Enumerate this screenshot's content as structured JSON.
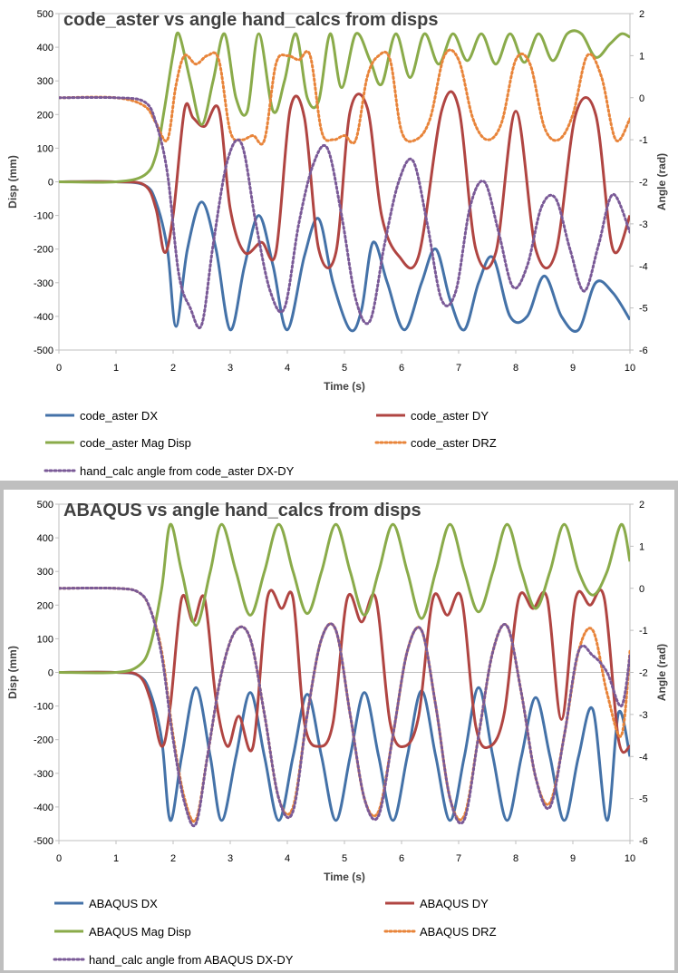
{
  "chart_data": [
    {
      "type": "line",
      "title": "code_aster vs angle hand_calcs from disps",
      "xlabel": "Time (s)",
      "ylabel": "Disp (mm)",
      "y2label": "Angle (rad)",
      "xlim": [
        0,
        10
      ],
      "ylim": [
        -500,
        500
      ],
      "y2lim": [
        -6,
        2
      ],
      "x_ticks": [
        "0",
        "1",
        "2",
        "3",
        "4",
        "5",
        "6",
        "7",
        "8",
        "9",
        "10"
      ],
      "y_ticks": [
        "500",
        "400",
        "300",
        "200",
        "100",
        "0",
        "-100",
        "-200",
        "-300",
        "-400",
        "-500"
      ],
      "y2_ticks": [
        "2",
        "1",
        "0",
        "-1",
        "-2",
        "-3",
        "-4",
        "-5",
        "-6"
      ],
      "legend_position": "bottom",
      "series": [
        {
          "name": "code_aster DX",
          "axis": "left",
          "color": "#4472a8",
          "style": "solid",
          "x": [
            0,
            1,
            1.5,
            1.7,
            1.9,
            2.05,
            2.25,
            2.5,
            2.75,
            3.0,
            3.25,
            3.5,
            3.75,
            4.0,
            4.3,
            4.55,
            4.8,
            5.1,
            5.3,
            5.5,
            5.75,
            6.05,
            6.35,
            6.6,
            6.85,
            7.1,
            7.35,
            7.6,
            7.9,
            8.2,
            8.5,
            8.8,
            9.1,
            9.4,
            9.7,
            10
          ],
          "y": [
            0,
            0,
            -10,
            -60,
            -200,
            -430,
            -200,
            -60,
            -200,
            -440,
            -250,
            -100,
            -250,
            -440,
            -220,
            -110,
            -300,
            -440,
            -380,
            -180,
            -300,
            -440,
            -300,
            -200,
            -350,
            -440,
            -300,
            -225,
            -400,
            -400,
            -280,
            -400,
            -440,
            -300,
            -330,
            -410
          ]
        },
        {
          "name": "code_aster DY",
          "axis": "left",
          "color": "#b04542",
          "style": "solid",
          "x": [
            0,
            1,
            1.5,
            1.7,
            1.85,
            2.0,
            2.2,
            2.35,
            2.55,
            2.8,
            3.0,
            3.25,
            3.55,
            3.8,
            4.05,
            4.3,
            4.55,
            4.85,
            5.1,
            5.4,
            5.65,
            5.95,
            6.3,
            6.7,
            7.0,
            7.3,
            7.65,
            8.0,
            8.35,
            8.7,
            9.05,
            9.4,
            9.7,
            10
          ],
          "y": [
            0,
            0,
            -10,
            -80,
            -210,
            -100,
            215,
            190,
            165,
            215,
            -80,
            -210,
            -180,
            -210,
            215,
            190,
            -200,
            -210,
            210,
            220,
            -100,
            -220,
            -220,
            210,
            220,
            -200,
            -210,
            210,
            -200,
            -210,
            200,
            200,
            -200,
            -100
          ]
        },
        {
          "name": "code_aster Mag Disp",
          "axis": "left",
          "color": "#8aab4a",
          "style": "solid",
          "x": [
            0,
            1,
            1.5,
            1.7,
            1.85,
            2.0,
            2.1,
            2.3,
            2.5,
            2.7,
            2.9,
            3.1,
            3.3,
            3.5,
            3.75,
            3.95,
            4.15,
            4.35,
            4.55,
            4.75,
            4.95,
            5.2,
            5.45,
            5.65,
            5.9,
            6.15,
            6.4,
            6.65,
            6.9,
            7.15,
            7.4,
            7.65,
            7.9,
            8.15,
            8.4,
            8.65,
            8.9,
            9.15,
            9.4,
            9.65,
            9.85,
            10
          ],
          "y": [
            0,
            0,
            20,
            80,
            220,
            380,
            440,
            300,
            170,
            300,
            440,
            250,
            210,
            440,
            210,
            300,
            440,
            250,
            240,
            440,
            280,
            440,
            360,
            290,
            440,
            310,
            440,
            350,
            440,
            360,
            440,
            350,
            440,
            355,
            440,
            360,
            440,
            440,
            370,
            410,
            440,
            430
          ]
        },
        {
          "name": "code_aster DRZ",
          "axis": "right",
          "color": "#e8843a",
          "style": "dotted",
          "x": [
            0,
            1,
            1.5,
            1.7,
            1.9,
            2.05,
            2.2,
            2.4,
            2.6,
            2.8,
            3.0,
            3.2,
            3.4,
            3.6,
            3.8,
            4.0,
            4.2,
            4.4,
            4.6,
            4.8,
            5.0,
            5.2,
            5.4,
            5.6,
            5.8,
            6.0,
            6.25,
            6.5,
            6.75,
            7.0,
            7.25,
            7.5,
            7.75,
            8.0,
            8.25,
            8.5,
            8.75,
            9.0,
            9.25,
            9.5,
            9.75,
            10
          ],
          "y": [
            0,
            0,
            -0.2,
            -0.6,
            -1.0,
            0.3,
            1.0,
            0.8,
            1.0,
            0.9,
            -0.8,
            -1.0,
            -0.9,
            -1.0,
            0.8,
            1.0,
            0.9,
            1.0,
            -0.8,
            -1.0,
            -0.9,
            -1.0,
            0.5,
            1.0,
            0.9,
            -0.8,
            -1.0,
            -0.5,
            1.0,
            0.9,
            -0.5,
            -1.0,
            -0.6,
            0.9,
            0.8,
            -0.7,
            -1.0,
            -0.4,
            1.0,
            0.5,
            -1.0,
            -0.5
          ]
        },
        {
          "name": "hand_calc angle from code_aster DX-DY",
          "axis": "right",
          "color": "#7a5a97",
          "style": "dotted",
          "x": [
            0,
            1,
            1.5,
            1.7,
            1.9,
            2.1,
            2.3,
            2.5,
            2.7,
            2.95,
            3.2,
            3.45,
            3.7,
            3.95,
            4.2,
            4.45,
            4.7,
            4.95,
            5.2,
            5.45,
            5.7,
            5.95,
            6.2,
            6.45,
            6.7,
            6.95,
            7.2,
            7.45,
            7.7,
            7.95,
            8.2,
            8.45,
            8.7,
            8.95,
            9.2,
            9.45,
            9.7,
            10
          ],
          "y": [
            0,
            0,
            -0.1,
            -0.6,
            -1.8,
            -4.2,
            -5.0,
            -5.4,
            -3.5,
            -1.5,
            -1.1,
            -3.0,
            -4.6,
            -5.0,
            -3.0,
            -1.6,
            -1.2,
            -2.8,
            -4.8,
            -5.3,
            -3.5,
            -2.0,
            -1.5,
            -3.0,
            -4.8,
            -4.6,
            -2.6,
            -2.0,
            -3.2,
            -4.5,
            -4.0,
            -2.6,
            -2.4,
            -3.6,
            -4.6,
            -3.5,
            -2.3,
            -3.2
          ]
        }
      ]
    },
    {
      "type": "line",
      "title": "ABAQUS vs angle hand_calcs from disps",
      "xlabel": "Time (s)",
      "ylabel": "Disp (mm)",
      "y2label": "Angle (rad)",
      "xlim": [
        0,
        10
      ],
      "ylim": [
        -500,
        500
      ],
      "y2lim": [
        -6,
        2
      ],
      "x_ticks": [
        "0",
        "1",
        "2",
        "3",
        "4",
        "5",
        "6",
        "7",
        "8",
        "9",
        "10"
      ],
      "y_ticks": [
        "500",
        "400",
        "300",
        "200",
        "100",
        "0",
        "-100",
        "-200",
        "-300",
        "-400",
        "-500"
      ],
      "y2_ticks": [
        "2",
        "1",
        "0",
        "-1",
        "-2",
        "-3",
        "-4",
        "-5",
        "-6"
      ],
      "legend_position": "bottom",
      "series": [
        {
          "name": "ABAQUS DX",
          "axis": "left",
          "color": "#4472a8",
          "style": "solid",
          "x": [
            0,
            1,
            1.4,
            1.6,
            1.8,
            1.95,
            2.15,
            2.4,
            2.65,
            2.85,
            3.1,
            3.35,
            3.6,
            3.85,
            4.1,
            4.35,
            4.6,
            4.85,
            5.1,
            5.35,
            5.6,
            5.85,
            6.1,
            6.35,
            6.6,
            6.85,
            7.1,
            7.35,
            7.6,
            7.85,
            8.1,
            8.35,
            8.6,
            8.85,
            9.1,
            9.35,
            9.6,
            9.8,
            10
          ],
          "y": [
            0,
            0,
            -10,
            -60,
            -200,
            -440,
            -250,
            -45,
            -250,
            -440,
            -250,
            -60,
            -250,
            -440,
            -250,
            -65,
            -250,
            -440,
            -250,
            -60,
            -250,
            -440,
            -250,
            -55,
            -250,
            -440,
            -250,
            -45,
            -250,
            -440,
            -250,
            -75,
            -250,
            -440,
            -250,
            -110,
            -440,
            -120,
            -250
          ]
        },
        {
          "name": "ABAQUS DY",
          "axis": "left",
          "color": "#b04542",
          "style": "solid",
          "x": [
            0,
            1,
            1.4,
            1.6,
            1.8,
            1.95,
            2.15,
            2.35,
            2.55,
            2.75,
            2.95,
            3.15,
            3.4,
            3.65,
            3.9,
            4.1,
            4.3,
            4.55,
            4.8,
            5.05,
            5.3,
            5.55,
            5.8,
            6.05,
            6.3,
            6.55,
            6.8,
            7.05,
            7.3,
            7.55,
            7.8,
            8.05,
            8.3,
            8.55,
            8.8,
            9.05,
            9.3,
            9.55,
            9.8,
            10
          ],
          "y": [
            0,
            0,
            -10,
            -80,
            -220,
            -100,
            220,
            150,
            220,
            -80,
            -220,
            -130,
            -220,
            220,
            190,
            220,
            -150,
            -220,
            -150,
            220,
            150,
            220,
            -150,
            -220,
            -130,
            220,
            170,
            220,
            -160,
            -220,
            -120,
            220,
            190,
            220,
            -140,
            220,
            200,
            220,
            -200,
            -220
          ]
        },
        {
          "name": "ABAQUS Mag Disp",
          "axis": "left",
          "color": "#8aab4a",
          "style": "solid",
          "x": [
            0,
            1,
            1.4,
            1.6,
            1.8,
            1.95,
            2.15,
            2.4,
            2.65,
            2.85,
            3.1,
            3.35,
            3.6,
            3.85,
            4.1,
            4.35,
            4.6,
            4.85,
            5.1,
            5.35,
            5.6,
            5.85,
            6.1,
            6.35,
            6.6,
            6.85,
            7.1,
            7.35,
            7.6,
            7.85,
            8.1,
            8.35,
            8.6,
            8.85,
            9.1,
            9.35,
            9.6,
            9.85,
            10
          ],
          "y": [
            0,
            0,
            20,
            80,
            250,
            440,
            300,
            140,
            300,
            440,
            300,
            170,
            300,
            440,
            300,
            175,
            300,
            440,
            300,
            170,
            300,
            440,
            300,
            160,
            300,
            440,
            300,
            180,
            300,
            440,
            300,
            190,
            300,
            440,
            300,
            230,
            300,
            440,
            330
          ]
        },
        {
          "name": "ABAQUS DRZ",
          "axis": "right",
          "color": "#e8843a",
          "style": "dotted",
          "x": [
            0,
            1,
            1.4,
            1.6,
            1.8,
            2.0,
            2.2,
            2.4,
            2.6,
            2.85,
            3.1,
            3.35,
            3.6,
            3.85,
            4.1,
            4.35,
            4.6,
            4.85,
            5.1,
            5.35,
            5.6,
            5.85,
            6.1,
            6.35,
            6.6,
            6.85,
            7.1,
            7.35,
            7.6,
            7.85,
            8.1,
            8.35,
            8.6,
            8.85,
            9.1,
            9.35,
            9.6,
            9.85,
            10
          ],
          "y": [
            0,
            0,
            -0.1,
            -0.5,
            -1.5,
            -3.5,
            -5.0,
            -5.5,
            -4.0,
            -2.0,
            -1.0,
            -1.2,
            -3.0,
            -5.0,
            -5.2,
            -3.0,
            -1.2,
            -1.0,
            -3.0,
            -5.0,
            -5.3,
            -3.5,
            -1.5,
            -1.0,
            -2.8,
            -5.0,
            -5.4,
            -3.5,
            -1.5,
            -0.9,
            -2.5,
            -4.5,
            -5.1,
            -3.5,
            -1.5,
            -1.0,
            -2.5,
            -3.5,
            -1.5
          ]
        },
        {
          "name": "hand_calc angle from ABAQUS DX-DY",
          "axis": "right",
          "color": "#7a5a97",
          "style": "dotted",
          "x": [
            0,
            1,
            1.4,
            1.6,
            1.8,
            2.0,
            2.2,
            2.4,
            2.6,
            2.85,
            3.1,
            3.35,
            3.6,
            3.85,
            4.1,
            4.35,
            4.6,
            4.85,
            5.1,
            5.35,
            5.6,
            5.85,
            6.1,
            6.35,
            6.6,
            6.85,
            7.1,
            7.35,
            7.6,
            7.85,
            8.1,
            8.35,
            8.6,
            8.85,
            9.1,
            9.35,
            9.6,
            9.85,
            10
          ],
          "y": [
            0,
            0,
            -0.1,
            -0.5,
            -1.6,
            -3.6,
            -5.1,
            -5.6,
            -4.0,
            -2.0,
            -1.0,
            -1.2,
            -3.0,
            -5.0,
            -5.3,
            -3.0,
            -1.2,
            -1.0,
            -3.0,
            -5.0,
            -5.4,
            -3.5,
            -1.5,
            -1.0,
            -2.8,
            -5.0,
            -5.5,
            -3.5,
            -1.5,
            -0.9,
            -2.5,
            -4.5,
            -5.2,
            -3.5,
            -1.5,
            -1.6,
            -2.0,
            -2.8,
            -1.6
          ]
        }
      ]
    }
  ]
}
